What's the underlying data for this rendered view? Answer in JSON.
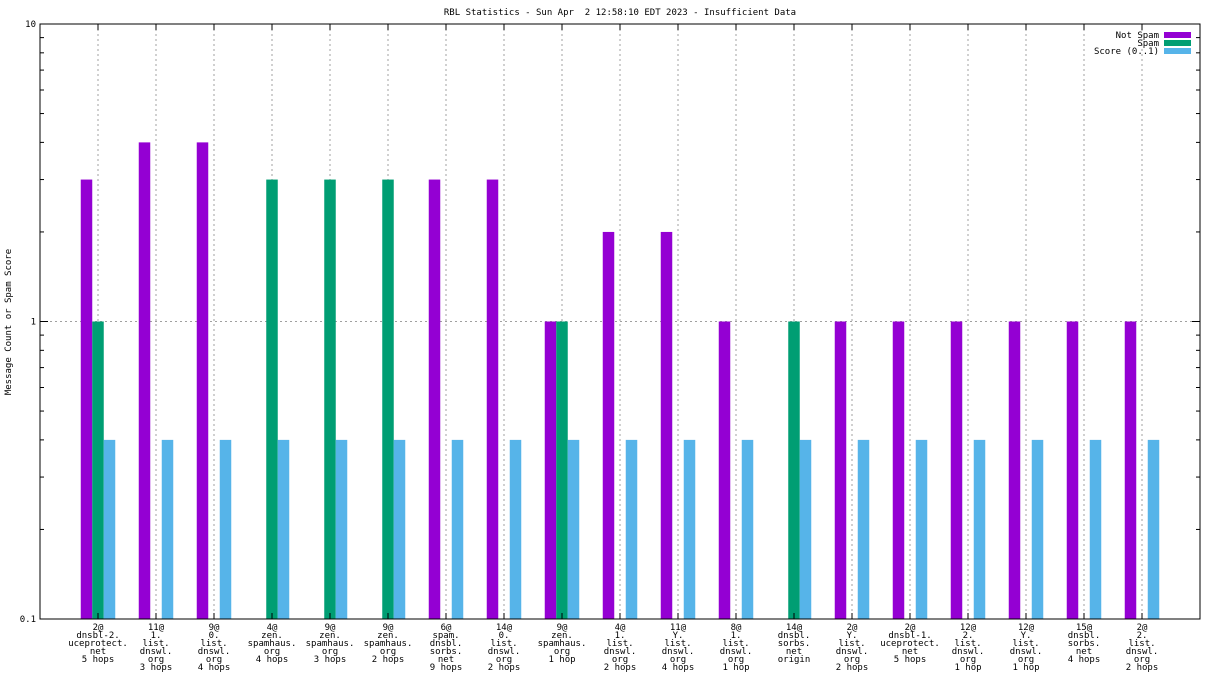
{
  "chart_data": {
    "type": "bar",
    "title": "RBL Statistics - Sun Apr  2 12:58:10 EDT 2023 - Insufficient Data",
    "xlabel": "",
    "ylabel": "Message Count or Spam Score",
    "yscale": "log",
    "ylim": [
      0.1,
      10
    ],
    "yticks": [
      "0.1",
      "1",
      "10"
    ],
    "grid": true,
    "legend_position": "top-right",
    "categories": [
      [
        "2@",
        "dnsbl-2.",
        "uceprotect.",
        "net",
        "5 hops"
      ],
      [
        "11@",
        "1.",
        "list.",
        "dnswl.",
        "org",
        "3 hops"
      ],
      [
        "9@",
        "0.",
        "list.",
        "dnswl.",
        "org",
        "4 hops"
      ],
      [
        "4@",
        "zen.",
        "spamhaus.",
        "org",
        "4 hops"
      ],
      [
        "9@",
        "zen.",
        "spamhaus.",
        "org",
        "3 hops"
      ],
      [
        "9@",
        "zen.",
        "spamhaus.",
        "org",
        "2 hops"
      ],
      [
        "6@",
        "spam.",
        "dnsbl.",
        "sorbs.",
        "net",
        "9 hops"
      ],
      [
        "14@",
        "0.",
        "list.",
        "dnswl.",
        "org",
        "2 hops"
      ],
      [
        "9@",
        "zen.",
        "spamhaus.",
        "org",
        "1 hop"
      ],
      [
        "4@",
        "1.",
        "list.",
        "dnswl.",
        "org",
        "2 hops"
      ],
      [
        "11@",
        "Y.",
        "list.",
        "dnswl.",
        "org",
        "4 hops"
      ],
      [
        "8@",
        "1.",
        "list.",
        "dnswl.",
        "org",
        "1 hop"
      ],
      [
        "14@",
        "dnsbl.",
        "sorbs.",
        "net",
        "origin"
      ],
      [
        "2@",
        "Y.",
        "list.",
        "dnswl.",
        "org",
        "2 hops"
      ],
      [
        "2@",
        "dnsbl-1.",
        "uceprotect.",
        "net",
        "5 hops"
      ],
      [
        "12@",
        "2.",
        "list.",
        "dnswl.",
        "org",
        "1 hop"
      ],
      [
        "12@",
        "Y.",
        "list.",
        "dnswl.",
        "org",
        "1 hop"
      ],
      [
        "15@",
        "dnsbl.",
        "sorbs.",
        "net",
        "4 hops"
      ],
      [
        "2@",
        "2.",
        "list.",
        "dnswl.",
        "org",
        "2 hops"
      ]
    ],
    "series": [
      {
        "name": "Not Spam",
        "color": "#9400D3",
        "values": [
          3,
          4,
          4,
          null,
          null,
          null,
          3,
          3,
          1,
          2,
          2,
          1,
          null,
          1,
          1,
          1,
          1,
          1,
          1
        ]
      },
      {
        "name": "Spam",
        "color": "#009E73",
        "values": [
          1,
          null,
          null,
          3,
          3,
          3,
          null,
          null,
          1,
          null,
          null,
          null,
          1,
          null,
          null,
          null,
          null,
          null,
          null
        ]
      },
      {
        "name": "Score (0..1)",
        "color": "#56B4E9",
        "values": [
          0.4,
          0.4,
          0.4,
          0.4,
          0.4,
          0.4,
          0.4,
          0.4,
          0.4,
          0.4,
          0.4,
          0.4,
          0.4,
          0.4,
          0.4,
          0.4,
          0.4,
          0.4,
          0.4
        ]
      }
    ]
  }
}
